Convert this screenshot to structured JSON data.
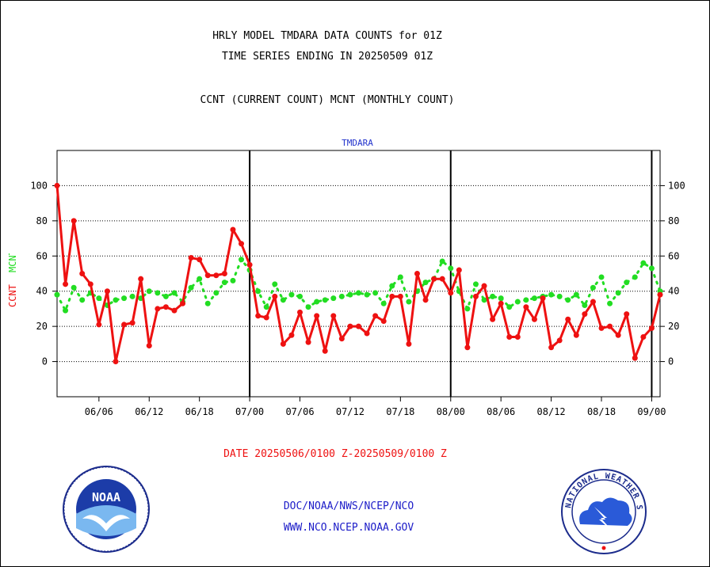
{
  "header": {
    "line1": "HRLY MODEL TMDARA DATA COUNTS for 01Z",
    "line2": "TIME SERIES ENDING IN 20250509 01Z",
    "line3": "CCNT (CURRENT COUNT) MCNT (MONTHLY COUNT)"
  },
  "footer": {
    "date_range": "DATE 20250506/0100 Z-20250509/0100 Z",
    "org_path": "DOC/NOAA/NWS/NCEP/NCO",
    "website": "WWW.NCO.NCEP.NOAA.GOV"
  },
  "logos": {
    "noaa_text": "NOAA",
    "nws_text": "NATIONAL WEATHER SERVICE"
  },
  "colors": {
    "ccnt": "#ee1111",
    "mcnt": "#22dd22",
    "panel_title": "#2233cc",
    "axis": "#000000",
    "grid": "#000000"
  },
  "chart_data": {
    "type": "line",
    "title": "TMDARA",
    "ylabel_parts": [
      "CCNT",
      "MCNT"
    ],
    "ylim": [
      -20,
      120
    ],
    "yticks": [
      0,
      20,
      40,
      60,
      80,
      100
    ],
    "xlim": [
      0,
      72
    ],
    "xticks": [
      {
        "x": 5,
        "label": "06/06"
      },
      {
        "x": 11,
        "label": "06/12"
      },
      {
        "x": 17,
        "label": "06/18"
      },
      {
        "x": 23,
        "label": "07/00"
      },
      {
        "x": 29,
        "label": "07/06"
      },
      {
        "x": 35,
        "label": "07/12"
      },
      {
        "x": 41,
        "label": "07/18"
      },
      {
        "x": 47,
        "label": "08/00"
      },
      {
        "x": 53,
        "label": "08/06"
      },
      {
        "x": 59,
        "label": "08/12"
      },
      {
        "x": 65,
        "label": "08/18"
      },
      {
        "x": 71,
        "label": "09/00"
      }
    ],
    "day_dividers": [
      23,
      47,
      71
    ],
    "grid": true,
    "series": [
      {
        "name": "CCNT",
        "values": [
          100,
          44,
          80,
          50,
          44,
          21,
          40,
          0,
          21,
          22,
          47,
          9,
          30,
          31,
          29,
          33,
          59,
          58,
          49,
          49,
          50,
          75,
          67,
          55,
          26,
          25,
          37,
          10,
          15,
          28,
          11,
          26,
          6,
          26,
          13,
          20,
          20,
          16,
          26,
          23,
          37,
          37,
          10,
          50,
          35,
          47,
          47,
          39,
          52,
          8,
          37,
          43,
          24,
          33,
          14,
          14,
          31,
          24,
          36,
          8,
          12,
          24,
          15,
          27,
          34,
          19,
          20,
          15,
          27,
          2,
          14,
          19,
          38
        ],
        "x_start": 0
      },
      {
        "name": "MCNT",
        "values": [
          38,
          29,
          42,
          35,
          39,
          36,
          32,
          35,
          36,
          37,
          36,
          40,
          39,
          37,
          39,
          34,
          42,
          47,
          33,
          39,
          45,
          46,
          58,
          52,
          40,
          31,
          44,
          35,
          38,
          37,
          31,
          34,
          35,
          36,
          37,
          38,
          39,
          38,
          39,
          33,
          43,
          48,
          34,
          40,
          45,
          47,
          57,
          53,
          40,
          30,
          44,
          35,
          37,
          36,
          31,
          34,
          35,
          36,
          37,
          38,
          37,
          35,
          38,
          32,
          42,
          48,
          33,
          39,
          45,
          48,
          56,
          53,
          40
        ],
        "x_start": 0
      }
    ]
  }
}
